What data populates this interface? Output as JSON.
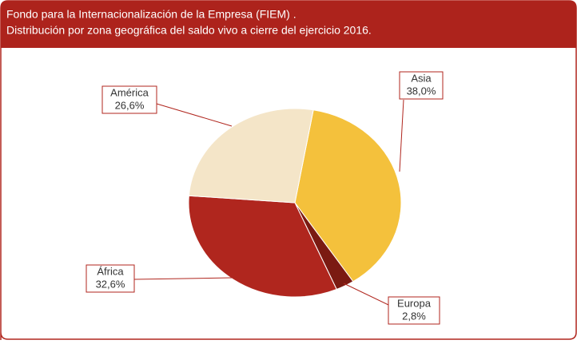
{
  "chart_data": {
    "type": "pie",
    "title": "Fondo para la Internacionalización de la Empresa (FIEM) .",
    "subtitle": "Distribución por zona geográfica del saldo vivo a cierre del ejercicio 2016.",
    "categories": [
      "Asia",
      "Europa",
      "África",
      "América"
    ],
    "values": [
      38.0,
      2.8,
      32.6,
      26.6
    ],
    "value_labels": [
      "38,0%",
      "2,8%",
      "32,6%",
      "26,6%"
    ],
    "colors": [
      "#f4c13c",
      "#7b1a12",
      "#b0261e",
      "#f4e5c8"
    ]
  }
}
